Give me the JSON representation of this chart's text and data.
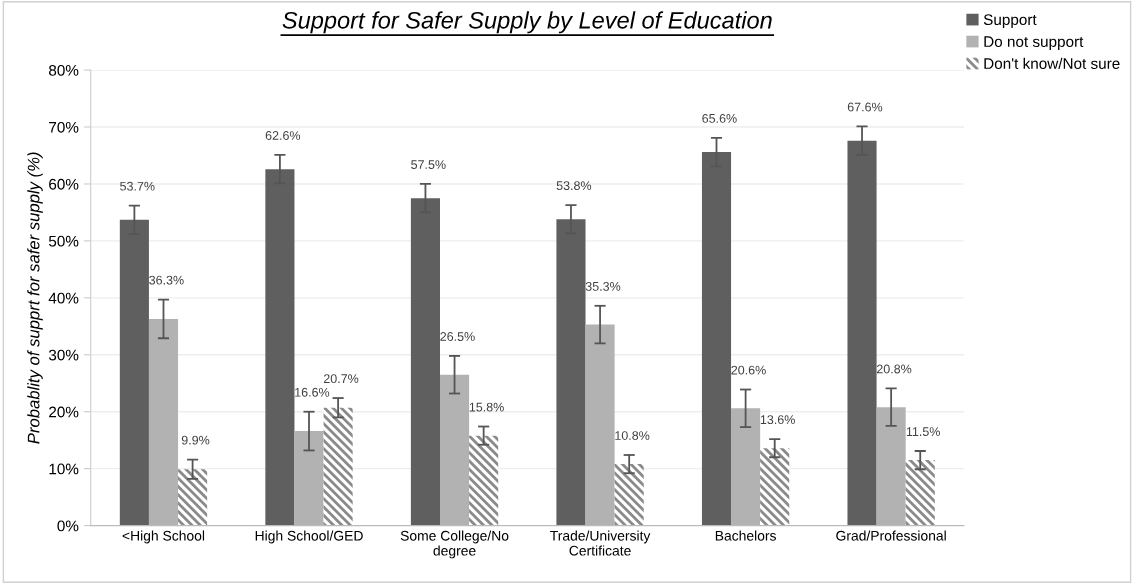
{
  "chart_data": {
    "type": "bar",
    "title": "Support for Safer Supply by Level of Education",
    "ylabel": "Probablity of supprt for safer supply (%)",
    "categories": [
      "<High School",
      "High School/GED",
      "Some College/No degree",
      "Trade/University Certificate",
      "Bachelors",
      "Grad/Professional"
    ],
    "series": [
      {
        "name": "Support",
        "color": "#5f5f5f",
        "values": [
          53.7,
          62.6,
          57.5,
          53.8,
          65.6,
          67.6
        ],
        "errors": [
          2.5,
          2.5,
          2.5,
          2.5,
          2.5,
          2.5
        ],
        "value_labels": [
          "53.7%",
          "62.6%",
          "57.5%",
          "53.8%",
          "65.6%",
          "67.6%"
        ]
      },
      {
        "name": "Do not support",
        "color": "#b2b2b2",
        "values": [
          36.3,
          16.6,
          26.5,
          35.3,
          20.6,
          20.8
        ],
        "errors": [
          3.4,
          3.4,
          3.3,
          3.3,
          3.3,
          3.3
        ],
        "value_labels": [
          "36.3%",
          "16.6%",
          "26.5%",
          "35.3%",
          "20.6%",
          "20.8%"
        ]
      },
      {
        "name": "Don't know/Not sure",
        "color": "#8a8a8a",
        "values": [
          9.9,
          20.7,
          15.8,
          10.8,
          13.6,
          11.5
        ],
        "errors": [
          1.7,
          1.7,
          1.6,
          1.6,
          1.6,
          1.6
        ],
        "value_labels": [
          "9.9%",
          "20.7%",
          "15.8%",
          "10.8%",
          "13.6%",
          "11.5%"
        ]
      }
    ],
    "ylim": [
      0,
      80
    ],
    "yticks": [
      {
        "value": 0,
        "label": "0%"
      },
      {
        "value": 10,
        "label": "10%"
      },
      {
        "value": 20,
        "label": "20%"
      },
      {
        "value": 30,
        "label": "30%"
      },
      {
        "value": 40,
        "label": "40%"
      },
      {
        "value": 50,
        "label": "50%"
      },
      {
        "value": 60,
        "label": "60%"
      },
      {
        "value": 70,
        "label": "70%"
      },
      {
        "value": 80,
        "label": "80%"
      }
    ],
    "grid": "y",
    "legend": "top right"
  }
}
